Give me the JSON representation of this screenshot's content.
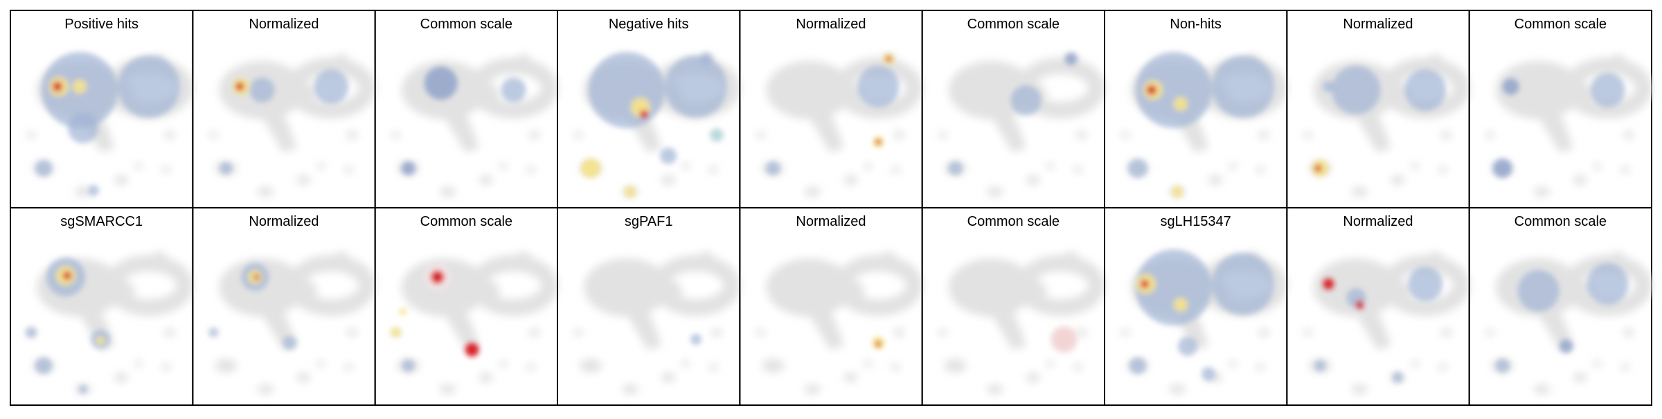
{
  "panels": [
    {
      "title": "Positive hits"
    },
    {
      "title": "Normalized"
    },
    {
      "title": "Common scale"
    },
    {
      "title": "Negative hits"
    },
    {
      "title": "Normalized"
    },
    {
      "title": "Common scale"
    },
    {
      "title": "Non-hits"
    },
    {
      "title": "Normalized"
    },
    {
      "title": "Common scale"
    },
    {
      "title": "sgSMARCC1"
    },
    {
      "title": "Normalized"
    },
    {
      "title": "Common scale"
    },
    {
      "title": "sgPAF1"
    },
    {
      "title": "Normalized"
    },
    {
      "title": "Common scale"
    },
    {
      "title": "sgLH15347"
    },
    {
      "title": "Normalized"
    },
    {
      "title": "Common scale"
    }
  ]
}
